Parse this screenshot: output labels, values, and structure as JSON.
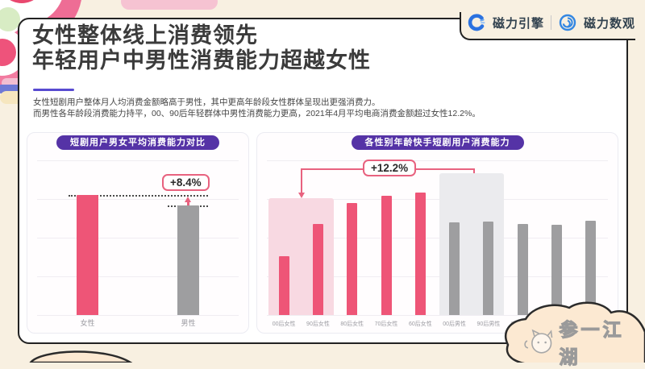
{
  "page": {
    "background_color": "#f8f0e1",
    "card_color": "#ffffff"
  },
  "header": {
    "title_line1": "女性整体线上消费领先",
    "title_line2": "年轻用户中男性消费能力超越女性",
    "subtitle_line1": "女性短剧用户整体月人均消费金额略高于男性，其中更高年龄段女性群体呈现出更强消费力。",
    "subtitle_line2": "而男性各年龄段消费能力持平，00、90后年轻群体中男性消费能力更高，2021年4月平均电商消费金额超过女性12.2%。"
  },
  "brand": {
    "logo1_label": "磁力引擎",
    "logo2_label": "磁力数观",
    "logo_blue": "#2f7fe0"
  },
  "watermark": {
    "text": "参一江湖"
  },
  "colors": {
    "female_bar": "#ee5577",
    "female_highlight": "#f8d9e2",
    "male_bar": "#9e9ea0",
    "male_highlight": "#ebebee",
    "pill_purple": "#5533a6",
    "annotation_pink": "#e8627f",
    "title_underline_purple": "#584bd1"
  },
  "chart_data": [
    {
      "type": "bar",
      "title": "短剧用户男女平均消费能力对比",
      "categories": [
        "女性",
        "男性"
      ],
      "values": [
        77.5,
        71
      ],
      "bar_colors": [
        "#ee5577",
        "#9e9ea0"
      ],
      "value_scale": "relative height in % of plot (no numeric axis shown)",
      "grid": true,
      "y_axis": "hidden",
      "annotations": [
        {
          "label": "+8.4%",
          "meaning_between": [
            "女性",
            "男性"
          ]
        }
      ]
    },
    {
      "type": "bar",
      "title": "各性别年龄快手短剧用户消费能力",
      "categories": [
        "00后女性",
        "90后女性",
        "80后女性",
        "70后女性",
        "60后女性",
        "00后男性",
        "90后男性",
        "80后男性",
        "70后男性",
        "60后男性"
      ],
      "values": [
        38,
        59,
        72.5,
        77,
        79,
        60,
        60.5,
        59,
        58.5,
        61
      ],
      "bar_colors": [
        "#ee5577",
        "#ee5577",
        "#ee5577",
        "#ee5577",
        "#ee5577",
        "#9e9ea0",
        "#9e9ea0",
        "#9e9ea0",
        "#9e9ea0",
        "#9e9ea0"
      ],
      "value_scale": "relative height in % of plot (no numeric axis shown)",
      "grid": true,
      "y_axis": "hidden",
      "highlights": [
        {
          "span": [
            "00后女性",
            "90后女性"
          ],
          "height": 75.5,
          "color": "#f8d9e2"
        },
        {
          "span": [
            "00后男性",
            "90后男性"
          ],
          "height": 91.5,
          "color": "#ebebee"
        }
      ],
      "annotations": [
        {
          "label": "+12.2%",
          "from": "00后女性",
          "to": "00后男性"
        }
      ]
    }
  ]
}
